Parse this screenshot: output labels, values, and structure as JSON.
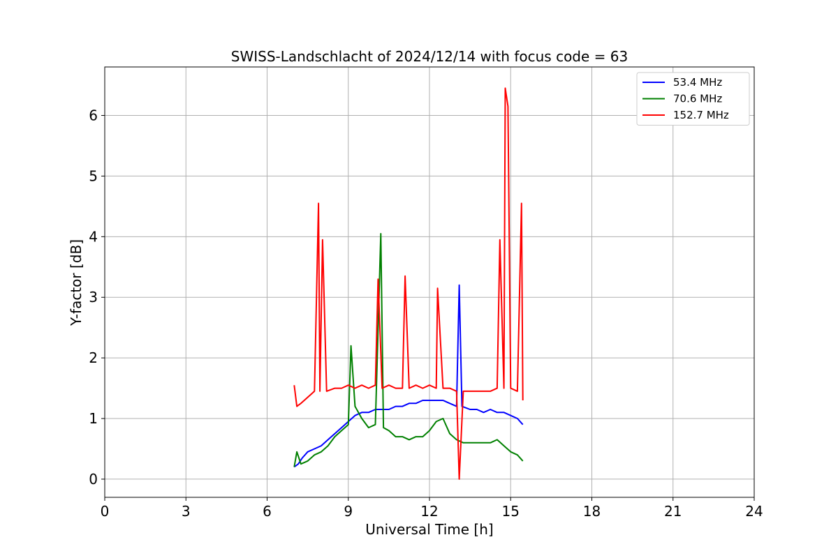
{
  "chart_data": {
    "type": "line",
    "title": "SWISS-Landschlacht of 2024/12/14 with focus code = 63",
    "xlabel": "Universal Time [h]",
    "ylabel": "Y-factor [dB]",
    "xlim": [
      0,
      24
    ],
    "ylim": [
      -0.3,
      6.8
    ],
    "xticks": [
      0,
      3,
      6,
      9,
      12,
      15,
      18,
      21,
      24
    ],
    "yticks": [
      0,
      1,
      2,
      3,
      4,
      5,
      6
    ],
    "grid": true,
    "legend_position": "top-right",
    "series": [
      {
        "name": " 53.4 MHz",
        "color": "#0000ff",
        "x": [
          7.0,
          7.15,
          7.3,
          7.5,
          7.75,
          8.0,
          8.25,
          8.5,
          8.75,
          9.0,
          9.25,
          9.5,
          9.75,
          10.0,
          10.25,
          10.5,
          10.75,
          11.0,
          11.25,
          11.5,
          11.75,
          12.0,
          12.25,
          12.5,
          12.75,
          13.0,
          13.1,
          13.2,
          13.5,
          13.75,
          14.0,
          14.25,
          14.5,
          14.75,
          15.0,
          15.25,
          15.45
        ],
        "y": [
          0.2,
          0.25,
          0.35,
          0.45,
          0.5,
          0.55,
          0.65,
          0.75,
          0.85,
          0.95,
          1.05,
          1.1,
          1.1,
          1.15,
          1.15,
          1.15,
          1.2,
          1.2,
          1.25,
          1.25,
          1.3,
          1.3,
          1.3,
          1.3,
          1.25,
          1.2,
          3.2,
          1.2,
          1.15,
          1.15,
          1.1,
          1.15,
          1.1,
          1.1,
          1.05,
          1.0,
          0.9
        ]
      },
      {
        "name": " 70.6 MHz",
        "color": "#008000",
        "x": [
          7.0,
          7.1,
          7.25,
          7.5,
          7.75,
          8.0,
          8.25,
          8.5,
          8.75,
          9.0,
          9.1,
          9.25,
          9.5,
          9.75,
          10.0,
          10.2,
          10.3,
          10.5,
          10.75,
          11.0,
          11.25,
          11.5,
          11.75,
          12.0,
          12.25,
          12.5,
          12.75,
          13.0,
          13.25,
          13.5,
          13.75,
          14.0,
          14.25,
          14.5,
          14.75,
          15.0,
          15.25,
          15.45
        ],
        "y": [
          0.2,
          0.45,
          0.25,
          0.3,
          0.4,
          0.45,
          0.55,
          0.7,
          0.8,
          0.9,
          2.2,
          1.2,
          1.0,
          0.85,
          0.9,
          4.05,
          0.85,
          0.8,
          0.7,
          0.7,
          0.65,
          0.7,
          0.7,
          0.8,
          0.95,
          1.0,
          0.75,
          0.65,
          0.6,
          0.6,
          0.6,
          0.6,
          0.6,
          0.65,
          0.55,
          0.45,
          0.4,
          0.3
        ]
      },
      {
        "name": " 152.7 MHz",
        "color": "#ff0000",
        "x": [
          7.0,
          7.1,
          7.25,
          7.5,
          7.75,
          7.9,
          7.95,
          8.05,
          8.2,
          8.5,
          8.75,
          9.0,
          9.25,
          9.5,
          9.75,
          10.0,
          10.1,
          10.25,
          10.5,
          10.75,
          11.0,
          11.1,
          11.25,
          11.5,
          11.75,
          12.0,
          12.25,
          12.3,
          12.5,
          12.75,
          13.0,
          13.1,
          13.25,
          13.5,
          13.75,
          14.0,
          14.25,
          14.5,
          14.6,
          14.75,
          14.8,
          14.9,
          15.0,
          15.25,
          15.4,
          15.45
        ],
        "y": [
          1.55,
          1.2,
          1.25,
          1.35,
          1.45,
          4.55,
          1.45,
          3.95,
          1.45,
          1.5,
          1.5,
          1.55,
          1.5,
          1.55,
          1.5,
          1.55,
          3.3,
          1.5,
          1.55,
          1.5,
          1.5,
          3.35,
          1.5,
          1.55,
          1.5,
          1.55,
          1.5,
          3.15,
          1.5,
          1.5,
          1.45,
          0.0,
          1.45,
          1.45,
          1.45,
          1.45,
          1.45,
          1.5,
          3.95,
          1.5,
          6.45,
          6.15,
          1.5,
          1.45,
          4.55,
          1.3
        ]
      }
    ]
  }
}
